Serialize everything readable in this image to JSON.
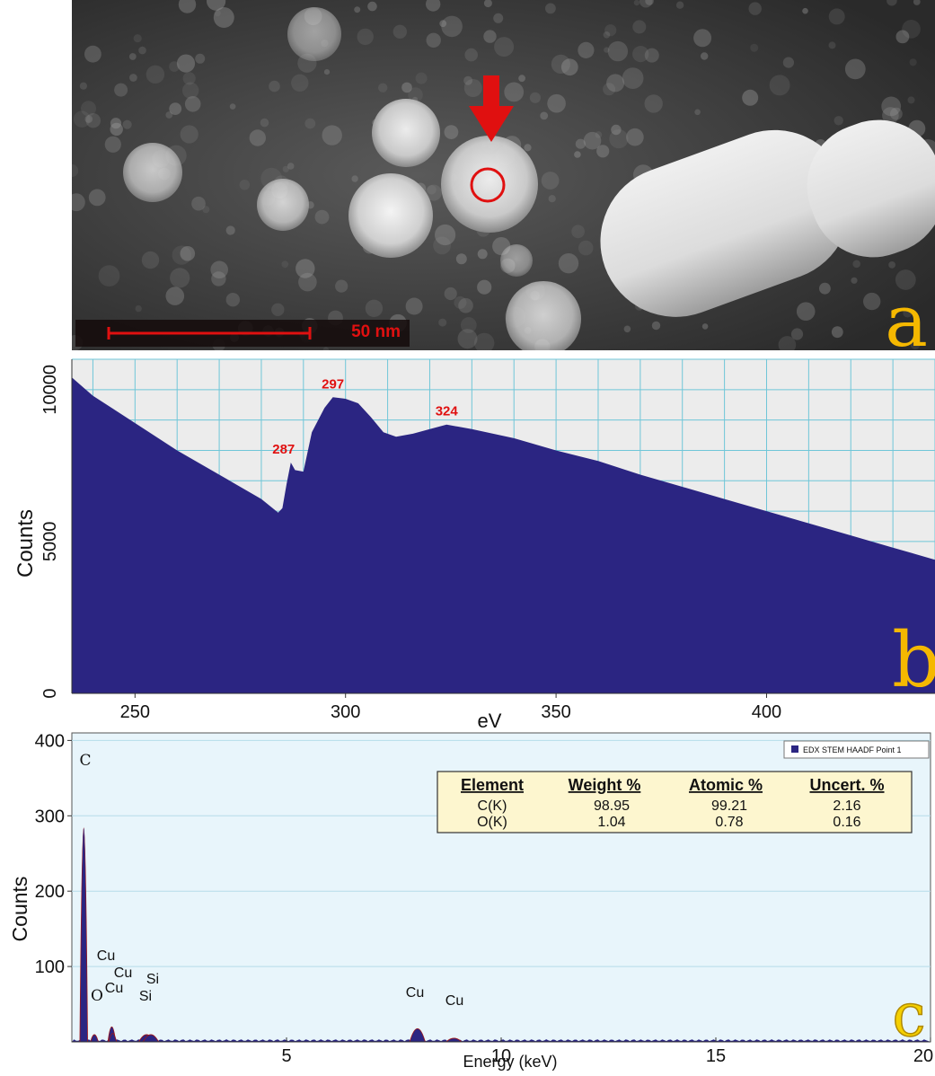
{
  "panel_a": {
    "label": "a",
    "scale_bar": "50 nm",
    "colors": {
      "marker": "#e01010",
      "label": "#f5b800"
    }
  },
  "chart_data": [
    {
      "panel": "b",
      "type": "area",
      "xlabel": "eV",
      "ylabel": "Counts",
      "xlim": [
        235,
        440
      ],
      "ylim": [
        0,
        11000
      ],
      "xticks": [
        250,
        300,
        350,
        400
      ],
      "yticks": [
        0,
        5000,
        10000
      ],
      "grid": true,
      "x": [
        235,
        240,
        250,
        260,
        270,
        280,
        284,
        285,
        286,
        287,
        288,
        290,
        292,
        295,
        297,
        300,
        303,
        306,
        309,
        312,
        316,
        320,
        324,
        330,
        340,
        350,
        360,
        370,
        380,
        390,
        400,
        410,
        420,
        430,
        440
      ],
      "y": [
        10400,
        9800,
        8900,
        8000,
        7200,
        6400,
        5950,
        6100,
        6900,
        7600,
        7350,
        7300,
        8600,
        9400,
        9750,
        9700,
        9550,
        9100,
        8600,
        8450,
        8550,
        8700,
        8850,
        8700,
        8400,
        8000,
        7650,
        7200,
        6800,
        6400,
        6000,
        5600,
        5200,
        4800,
        4400
      ],
      "annotations": [
        {
          "x": 287,
          "label": "287"
        },
        {
          "x": 297,
          "label": "297"
        },
        {
          "x": 324,
          "label": "324"
        }
      ],
      "colors": {
        "fill": "#2b2582",
        "background": "#ececec",
        "grid": "#6fc6d8",
        "annotation": "#e01010"
      },
      "panel_label": "b"
    },
    {
      "panel": "c",
      "type": "area",
      "xlabel": "Energy (keV)",
      "ylabel": "Counts",
      "xlim": [
        0,
        20
      ],
      "ylim": [
        0,
        410
      ],
      "xticks": [
        5,
        10,
        15,
        20
      ],
      "yticks": [
        100,
        200,
        300,
        400
      ],
      "legend": {
        "label": "EDX STEM HAADF Point 1",
        "position": "top-right"
      },
      "peaks": [
        {
          "x": 0.277,
          "y": 355,
          "label": "C"
        },
        {
          "x": 0.525,
          "y": 12,
          "label": "O"
        },
        {
          "x": 0.93,
          "y": 25,
          "label": "Cu"
        },
        {
          "x": 0.95,
          "y": 14,
          "label": "Cu"
        },
        {
          "x": 1.74,
          "y": 12,
          "label": "Si"
        },
        {
          "x": 1.84,
          "y": 12,
          "label": "Si"
        },
        {
          "x": 8.05,
          "y": 22,
          "label": "Cu"
        },
        {
          "x": 8.9,
          "y": 6,
          "label": "Cu"
        }
      ],
      "peak_labels": [
        "C",
        "Cu",
        "Cu",
        "O",
        "Cu",
        "Si",
        "Si",
        "Cu",
        "Cu"
      ],
      "table": {
        "headers": [
          "Element",
          "Weight %",
          "Atomic %",
          "Uncert. %"
        ],
        "rows": [
          [
            "C(K)",
            "98.95",
            "99.21",
            "2.16"
          ],
          [
            "O(K)",
            "1.04",
            "0.78",
            "0.16"
          ]
        ]
      },
      "colors": {
        "fill": "#2b2582",
        "line": "#a31515",
        "background": "#e8f5fb",
        "grid": "#b5dcea",
        "table_bg": "#fdf6cf"
      },
      "panel_label": "c"
    }
  ]
}
